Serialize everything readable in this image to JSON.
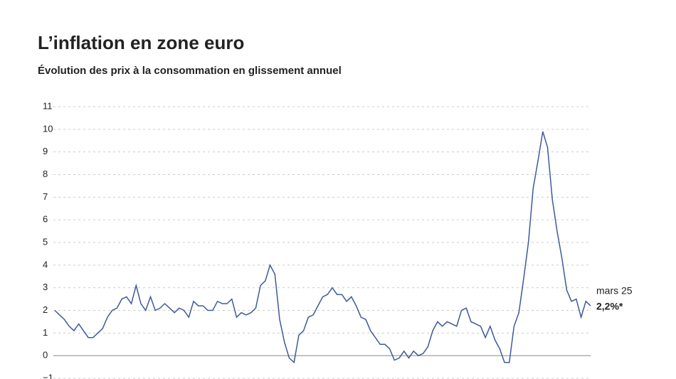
{
  "chart_data": {
    "type": "line",
    "title": "L’inflation en zone euro",
    "subtitle": "Évolution des prix à la consommation en glissement annuel",
    "series": [
      {
        "color": "#3d5a99",
        "values": [
          2.0,
          1.8,
          1.6,
          1.3,
          1.1,
          1.4,
          1.1,
          0.8,
          0.8,
          1.0,
          1.2,
          1.7,
          2.0,
          2.1,
          2.5,
          2.6,
          2.3,
          3.1,
          2.3,
          2.0,
          2.6,
          2.0,
          2.1,
          2.3,
          2.1,
          1.9,
          2.1,
          2.0,
          1.7,
          2.4,
          2.2,
          2.2,
          2.0,
          2.0,
          2.4,
          2.3,
          2.3,
          2.5,
          1.7,
          1.9,
          1.8,
          1.9,
          2.1,
          3.1,
          3.3,
          4.0,
          3.6,
          1.6,
          0.6,
          -0.1,
          -0.3,
          0.9,
          1.1,
          1.7,
          1.8,
          2.2,
          2.6,
          2.7,
          3.0,
          2.7,
          2.7,
          2.4,
          2.6,
          2.2,
          1.7,
          1.6,
          1.1,
          0.8,
          0.5,
          0.5,
          0.3,
          -0.2,
          -0.1,
          0.2,
          -0.1,
          0.2,
          0.0,
          0.1,
          0.4,
          1.1,
          1.5,
          1.3,
          1.5,
          1.4,
          1.3,
          2.0,
          2.1,
          1.5,
          1.4,
          1.3,
          0.8,
          1.3,
          0.7,
          0.3,
          -0.3,
          -0.3,
          1.3,
          1.9,
          3.4,
          5.0,
          7.4,
          8.6,
          9.9,
          9.2,
          6.9,
          5.5,
          4.3,
          2.9,
          2.4,
          2.5,
          1.7,
          2.4,
          2.2
        ]
      }
    ],
    "last_point": {
      "date": "mars 25",
      "label": "2,2%*"
    },
    "ylim": [
      -1,
      11
    ],
    "yticks": [
      {
        "value": -1,
        "label": "−1"
      },
      0,
      1,
      2,
      3,
      4,
      5,
      6,
      7,
      8,
      9,
      10,
      11
    ],
    "grid": true
  }
}
